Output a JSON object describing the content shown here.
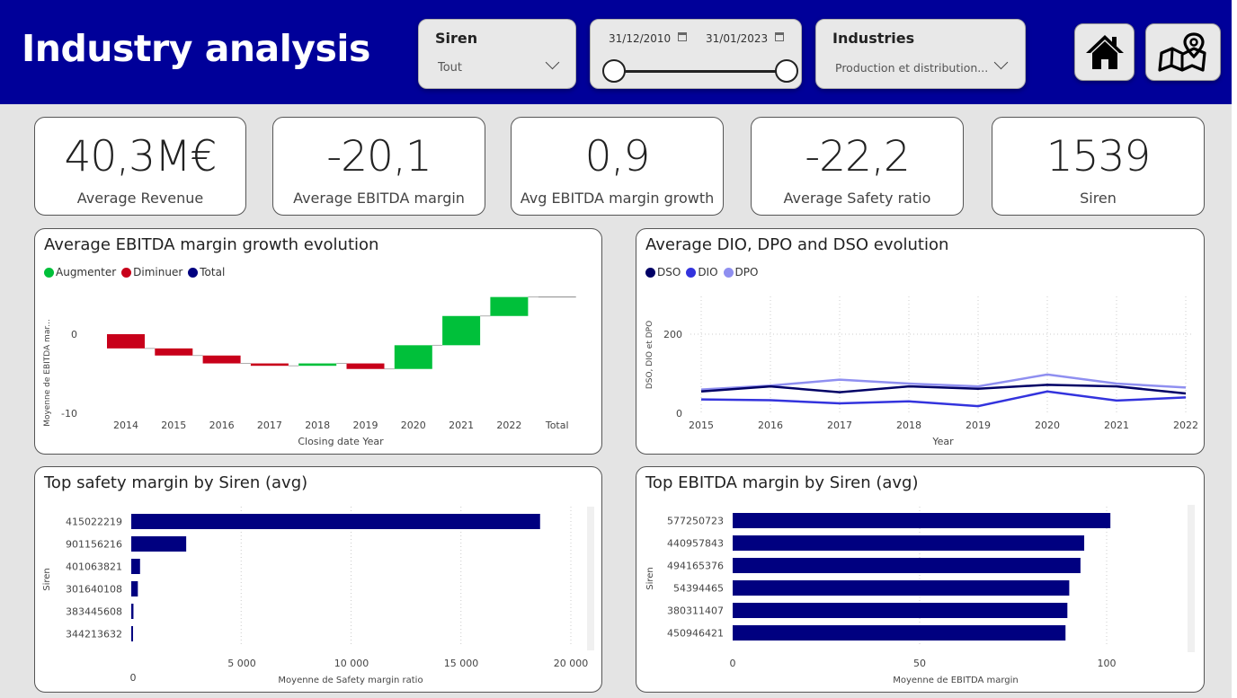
{
  "header": {
    "title": "Industry analysis",
    "bg_color": "#000099"
  },
  "filters": {
    "siren": {
      "title": "Siren",
      "value": "Tout"
    },
    "date_range": {
      "start": "31/12/2010",
      "end": "31/01/2023"
    },
    "industries": {
      "title": "Industries",
      "value": "Production et distribution..."
    }
  },
  "nav": {
    "home_icon": "home-icon",
    "map_icon": "map-icon"
  },
  "kpis": [
    {
      "value": "40,3M€",
      "label": "Average Revenue"
    },
    {
      "value": "-20,1",
      "label": "Average EBITDA margin"
    },
    {
      "value": "0,9",
      "label": "Avg EBITDA margin growth"
    },
    {
      "value": "-22,2",
      "label": "Average Safety ratio"
    },
    {
      "value": "1539",
      "label": "Siren"
    }
  ],
  "waterfall": {
    "title": "Average EBITDA margin growth evolution",
    "legend": [
      {
        "label": "Augmenter",
        "color": "#00c03a"
      },
      {
        "label": "Diminuer",
        "color": "#c8001a"
      },
      {
        "label": "Total",
        "color": "#000080"
      }
    ],
    "xlabel": "Closing date Year",
    "ylabel": "Moyenne de EBITDA mar...",
    "yticks": [
      "0",
      "-10"
    ]
  },
  "line": {
    "title": "Average DIO, DPO and DSO evolution",
    "legend": [
      {
        "label": "DSO",
        "color": "#000066"
      },
      {
        "label": "DIO",
        "color": "#3333dd"
      },
      {
        "label": "DPO",
        "color": "#8f8ff0"
      }
    ],
    "xlabel": "Year",
    "ylabel": "DSO, DIO et DPO",
    "yticks": [
      "200",
      "0"
    ]
  },
  "bar_safety": {
    "title": "Top safety margin by Siren (avg)",
    "xlabel": "Moyenne de Safety margin ratio",
    "ylabel": "Siren",
    "xticks": [
      "0",
      "5 000",
      "10 000",
      "15 000",
      "20 000"
    ]
  },
  "bar_ebitda": {
    "title": "Top EBITDA margin by Siren (avg)",
    "xlabel": "Moyenne de EBITDA margin",
    "ylabel": "Siren",
    "xticks": [
      "0",
      "50",
      "100"
    ]
  },
  "chart_data": [
    {
      "type": "bar",
      "subtype": "waterfall",
      "categories": [
        "2014",
        "2015",
        "2016",
        "2017",
        "2018",
        "2019",
        "2020",
        "2021",
        "2022",
        "Total"
      ],
      "values": [
        -1.8,
        -0.9,
        -1.0,
        -0.3,
        0.3,
        -0.7,
        3.0,
        3.7,
        2.4,
        0.0
      ],
      "ylim": [
        -10,
        4
      ]
    },
    {
      "type": "line",
      "x": [
        "2015",
        "2016",
        "2017",
        "2018",
        "2019",
        "2020",
        "2021",
        "2022"
      ],
      "series": [
        {
          "name": "DSO",
          "values": [
            55,
            68,
            53,
            68,
            62,
            72,
            68,
            50
          ]
        },
        {
          "name": "DIO",
          "values": [
            35,
            33,
            25,
            30,
            18,
            55,
            32,
            40
          ]
        },
        {
          "name": "DPO",
          "values": [
            60,
            70,
            85,
            75,
            68,
            98,
            75,
            65
          ]
        }
      ],
      "ylim": [
        0,
        200
      ]
    },
    {
      "type": "bar",
      "orientation": "horizontal",
      "categories": [
        "415022219",
        "901156216",
        "401063821",
        "301640108",
        "383445608",
        "344213632"
      ],
      "values": [
        18600,
        2500,
        400,
        300,
        100,
        80
      ],
      "xlim": [
        0,
        20000
      ]
    },
    {
      "type": "bar",
      "orientation": "horizontal",
      "categories": [
        "577250723",
        "440957843",
        "494165376",
        "54394465",
        "380311407",
        "450946421"
      ],
      "values": [
        101,
        94,
        93,
        90,
        89.5,
        89
      ],
      "xlim": [
        0,
        100
      ]
    }
  ]
}
